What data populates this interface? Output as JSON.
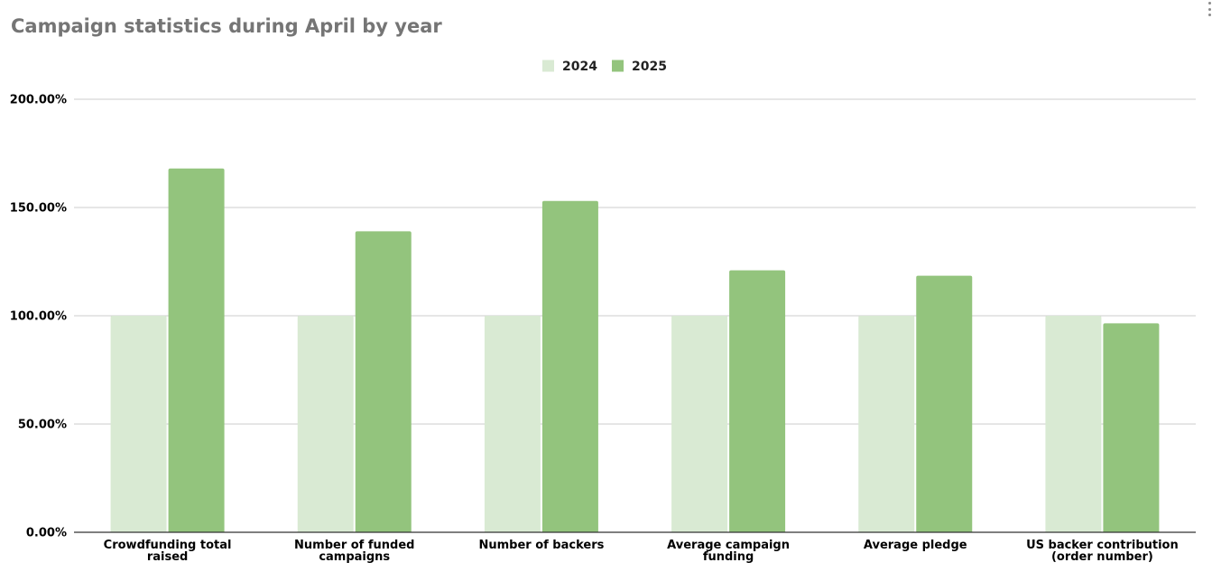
{
  "chart_data": {
    "type": "bar",
    "title": "Campaign statistics during April by year",
    "categories": [
      [
        "Crowdfunding total",
        "raised"
      ],
      [
        "Number of funded",
        "campaigns"
      ],
      [
        "Number of backers"
      ],
      [
        "Average campaign",
        "funding"
      ],
      [
        "Average pledge"
      ],
      [
        "US backer contribution",
        "(order number)"
      ]
    ],
    "series": [
      {
        "name": "2024",
        "color": "#d9ead3",
        "values": [
          100,
          100,
          100,
          100,
          100,
          100
        ]
      },
      {
        "name": "2025",
        "color": "#93c47d",
        "values": [
          168,
          139,
          153,
          121,
          118.5,
          96.5
        ]
      }
    ],
    "yticks": [
      "0.00%",
      "50.00%",
      "100.00%",
      "150.00%",
      "200.00%"
    ],
    "ylim": [
      0,
      200
    ],
    "xlabel": "",
    "ylabel": "",
    "grid": true,
    "legend_position": "top-center"
  },
  "ui": {
    "menu_icon": "more-vert-icon"
  }
}
